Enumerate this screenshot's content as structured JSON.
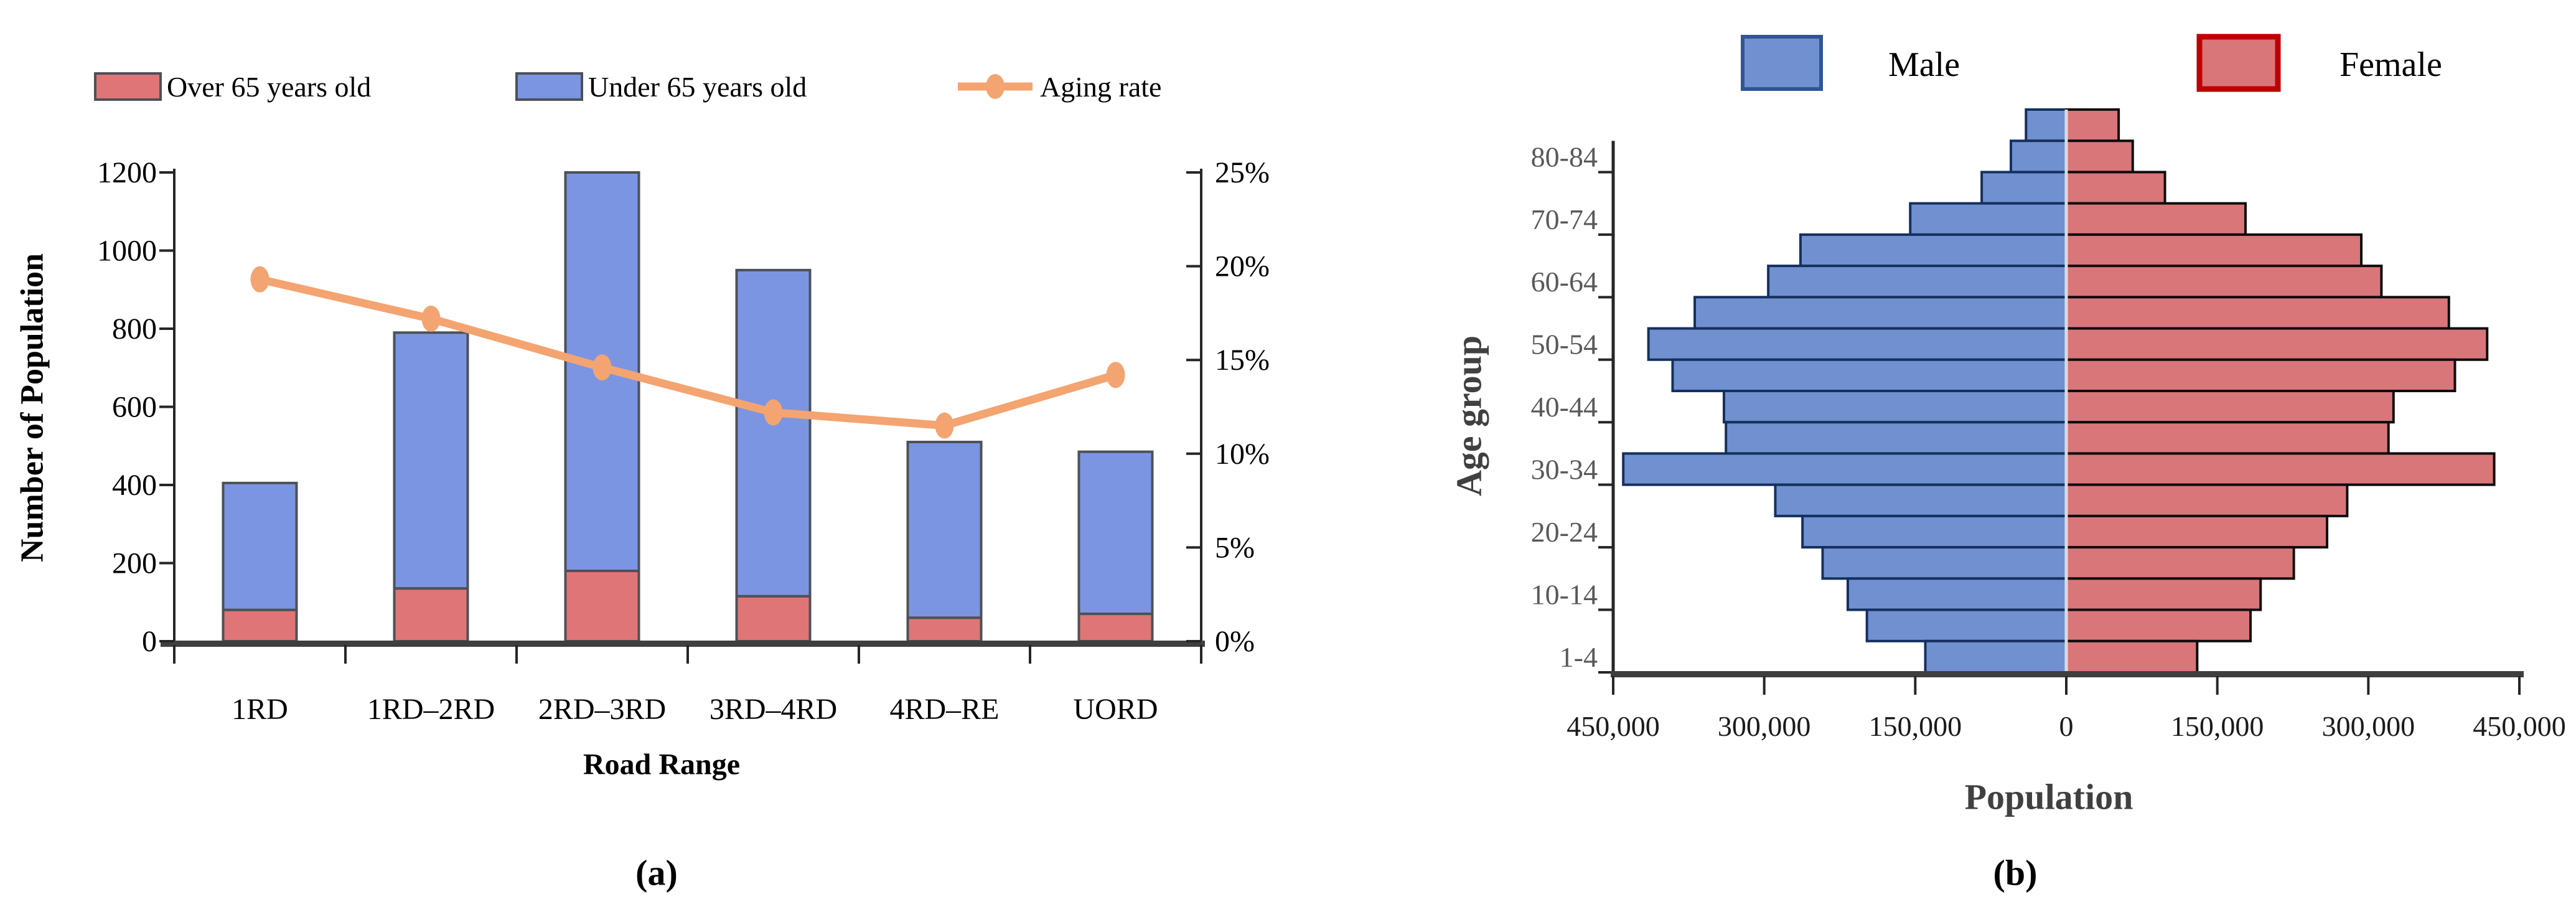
{
  "panel_a": {
    "caption": "(a)",
    "y_axis_title": "Number of Population",
    "x_axis_title": "Road Range"
  },
  "panel_b": {
    "caption": "(b)",
    "y_axis_title": "Age group",
    "x_axis_title": "Population"
  },
  "colors": {
    "bar_over65": "#DF7577",
    "bar_under65": "#7B95E2",
    "bar_border": "#4D5156",
    "aging_line": "#F4A470",
    "male_fill": "#7090D0",
    "male_border": "#15305E",
    "female_fill": "#D9767A",
    "female_border": "#0D0D0D",
    "legend_male_border": "#2F5597",
    "legend_female_border": "#C00000",
    "axis": "#262626",
    "axis_heavy": "#3F3F3F",
    "text_black": "#000000",
    "text_gray": "#595959",
    "text_dark_gray": "#404040"
  },
  "chart_data": [
    {
      "type": "bar",
      "subtype": "stacked-bar-with-line",
      "title": "",
      "xlabel": "Road Range",
      "ylabel": "Number of Population",
      "categories": [
        "1RD",
        "1RD–2RD",
        "2RD–3RD",
        "3RD–4RD",
        "4RD–RE",
        "UORD"
      ],
      "series": [
        {
          "name": "Over 65 years old",
          "type": "bar",
          "stack": "population",
          "values": [
            80,
            135,
            180,
            115,
            60,
            70
          ]
        },
        {
          "name": "Under 65 years old",
          "type": "bar",
          "stack": "population",
          "values": [
            325,
            655,
            1020,
            835,
            450,
            415
          ]
        },
        {
          "name": "Aging rate",
          "type": "line",
          "axis": "right",
          "unit": "%",
          "values": [
            19.3,
            17.2,
            14.6,
            12.2,
            11.5,
            14.2
          ]
        }
      ],
      "ylim": [
        0,
        1200
      ],
      "yticks": [
        0,
        200,
        400,
        600,
        800,
        1000,
        1200
      ],
      "y2lim": [
        0,
        25
      ],
      "y2tick_labels": [
        "0%",
        "5%",
        "10%",
        "15%",
        "20%",
        "25%"
      ],
      "legend_position": "top",
      "grid": false
    },
    {
      "type": "bar",
      "subtype": "population-pyramid",
      "title": "",
      "xlabel": "Population",
      "ylabel": "Age group",
      "legend": [
        "Male",
        "Female"
      ],
      "xlim": [
        -450000,
        450000
      ],
      "xtick_labels": [
        "450,000",
        "300,000",
        "150,000",
        "0",
        "150,000",
        "300,000",
        "450,000"
      ],
      "xtick_values": [
        -450000,
        -300000,
        -150000,
        0,
        150000,
        300000,
        450000
      ],
      "legend_position": "top",
      "grid": false,
      "bands_top_to_bottom": [
        {
          "label": null,
          "male": 40000,
          "female": 52000
        },
        {
          "label": "80-84",
          "male": 55000,
          "female": 66000
        },
        {
          "label": null,
          "male": 84000,
          "female": 98000
        },
        {
          "label": "70-74",
          "male": 155000,
          "female": 178000
        },
        {
          "label": null,
          "male": 264000,
          "female": 293000
        },
        {
          "label": "60-64",
          "male": 296000,
          "female": 313000
        },
        {
          "label": null,
          "male": 369000,
          "female": 380000
        },
        {
          "label": "50-54",
          "male": 415000,
          "female": 418000
        },
        {
          "label": null,
          "male": 391000,
          "female": 386000
        },
        {
          "label": "40-44",
          "male": 340000,
          "female": 325000
        },
        {
          "label": null,
          "male": 338000,
          "female": 320000
        },
        {
          "label": "30-34",
          "male": 440000,
          "female": 425000
        },
        {
          "label": null,
          "male": 289000,
          "female": 279000
        },
        {
          "label": "20-24",
          "male": 262000,
          "female": 259000
        },
        {
          "label": null,
          "male": 242000,
          "female": 226000
        },
        {
          "label": "10-14",
          "male": 217000,
          "female": 193000
        },
        {
          "label": null,
          "male": 198000,
          "female": 183000
        },
        {
          "label": "1-4",
          "male": 140000,
          "female": 130000
        }
      ]
    }
  ]
}
